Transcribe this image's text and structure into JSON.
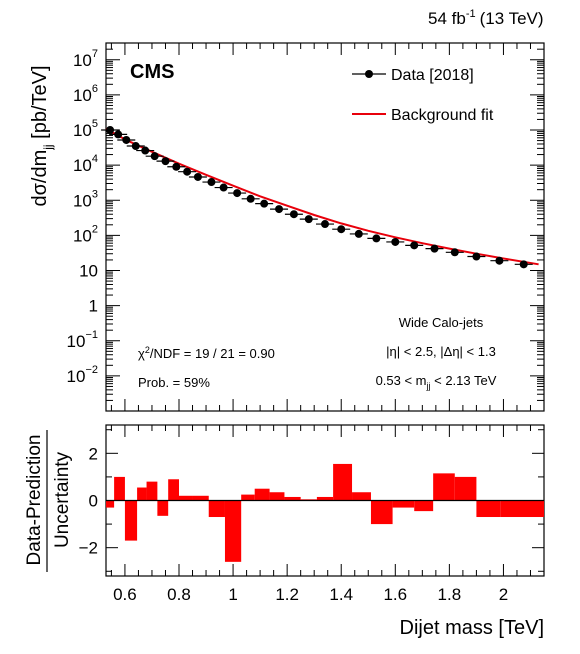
{
  "header": {
    "lumi": "54 fb",
    "lumi_sup": "-1",
    "energy": "(13 TeV)"
  },
  "chart_data": [
    {
      "type": "scatter",
      "experiment_label": "CMS",
      "ylabel_main": "dσ/dm",
      "ylabel_sub": "jj",
      "ylabel_units": " [pb/TeV]",
      "yscale": "log",
      "ylim": [
        0.001,
        30000000
      ],
      "xlim": [
        0.53,
        2.15
      ],
      "grid": false,
      "legend_position": "top-right",
      "y_tick_labels": [
        {
          "value": 10000000,
          "base": "10",
          "exp": "7"
        },
        {
          "value": 1000000,
          "base": "10",
          "exp": "6"
        },
        {
          "value": 100000,
          "base": "10",
          "exp": "5"
        },
        {
          "value": 10000,
          "base": "10",
          "exp": "4"
        },
        {
          "value": 1000,
          "base": "10",
          "exp": "3"
        },
        {
          "value": 100,
          "base": "10",
          "exp": "2"
        },
        {
          "value": 10,
          "base": "10",
          "exp": ""
        },
        {
          "value": 1,
          "base": "1",
          "exp": ""
        },
        {
          "value": 0.1,
          "base": "10",
          "exp": "−1"
        },
        {
          "value": 0.01,
          "base": "10",
          "exp": "−2"
        }
      ],
      "legend": [
        {
          "label": "Data [2018]",
          "marker": "point-with-errorbar",
          "color": "#000000"
        },
        {
          "label": "Background fit",
          "marker": "line",
          "color": "#e8000b"
        }
      ],
      "annotations": {
        "fit_chi2_prefix": "χ",
        "fit_chi2_sup": "2",
        "fit_chi2_rest": "/NDF = 19 / 21 = 0.90",
        "fit_prob": "Prob. = 59%",
        "jet_type": "Wide Calo-jets",
        "cut_eta": "|η| < 2.5, |Δη| < 1.3",
        "mass_range_prefix": "0.53 < m",
        "mass_range_sub": "jj",
        "mass_range_suffix": " < 2.13 TeV"
      },
      "series": [
        {
          "name": "Data [2018]",
          "x": [
            0.545,
            0.575,
            0.605,
            0.64,
            0.675,
            0.71,
            0.75,
            0.79,
            0.83,
            0.87,
            0.92,
            0.965,
            1.015,
            1.065,
            1.115,
            1.17,
            1.225,
            1.28,
            1.34,
            1.4,
            1.465,
            1.53,
            1.6,
            1.67,
            1.745,
            1.82,
            1.9,
            1.985,
            2.075
          ],
          "y": [
            100000,
            75000,
            52000,
            35000,
            26000,
            18000,
            13000,
            9000,
            6500,
            4600,
            3300,
            2300,
            1600,
            1100,
            800,
            560,
            400,
            290,
            210,
            150,
            110,
            82,
            65,
            52,
            42,
            33,
            25,
            19,
            15
          ]
        },
        {
          "name": "Background fit",
          "x": [
            0.53,
            0.6,
            0.7,
            0.8,
            0.9,
            1.0,
            1.1,
            1.2,
            1.3,
            1.4,
            1.5,
            1.6,
            1.7,
            1.8,
            1.9,
            2.0,
            2.13
          ],
          "y": [
            110000,
            54000,
            24000,
            11000,
            5300,
            2600,
            1300,
            700,
            380,
            220,
            135,
            88,
            60,
            42,
            30,
            22,
            15
          ]
        }
      ]
    },
    {
      "type": "bar",
      "ylabel_top": "Data-Prediction",
      "ylabel_bottom": "Uncertainty",
      "xlabel": "Dijet mass [TeV]",
      "ylim": [
        -3.2,
        3.2
      ],
      "xlim": [
        0.53,
        2.15
      ],
      "bar_color": "#ff0000",
      "y_ticks": [
        -2,
        0,
        2
      ],
      "y_tick_labels": [
        "−2",
        "0",
        "2"
      ],
      "x_ticks": [
        0.6,
        0.8,
        1.0,
        1.2,
        1.4,
        1.6,
        1.8,
        2.0
      ],
      "x_tick_labels": [
        "0.6",
        "0.8",
        "1",
        "1.2",
        "1.4",
        "1.6",
        "1.8",
        "2"
      ],
      "bin_edges": [
        0.53,
        0.56,
        0.6,
        0.645,
        0.68,
        0.72,
        0.76,
        0.8,
        0.85,
        0.91,
        0.97,
        1.03,
        1.08,
        1.135,
        1.19,
        1.25,
        1.31,
        1.37,
        1.44,
        1.51,
        1.59,
        1.67,
        1.74,
        1.82,
        1.9,
        1.99,
        2.15
      ],
      "values": [
        -0.3,
        1.0,
        -1.7,
        0.55,
        0.8,
        -0.65,
        0.9,
        0.2,
        0.2,
        -0.7,
        -2.6,
        0.25,
        0.5,
        0.35,
        0.15,
        0.05,
        0.15,
        1.55,
        0.35,
        -1.0,
        -0.3,
        -0.45,
        1.15,
        1.0,
        -0.7,
        -0.7
      ]
    }
  ]
}
